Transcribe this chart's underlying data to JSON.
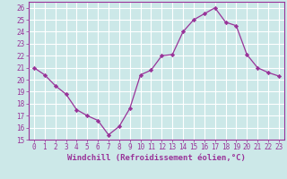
{
  "x": [
    0,
    1,
    2,
    3,
    4,
    5,
    6,
    7,
    8,
    9,
    10,
    11,
    12,
    13,
    14,
    15,
    16,
    17,
    18,
    19,
    20,
    21,
    22,
    23
  ],
  "y": [
    21.0,
    20.4,
    19.5,
    18.8,
    17.5,
    17.0,
    16.6,
    15.4,
    16.1,
    17.6,
    20.4,
    20.8,
    22.0,
    22.1,
    24.0,
    25.0,
    25.5,
    26.0,
    24.8,
    24.5,
    22.1,
    21.0,
    20.6,
    20.3
  ],
  "line_color": "#993399",
  "marker": "D",
  "marker_size": 2.2,
  "bg_color": "#cce8e8",
  "grid_color": "#ffffff",
  "tick_color": "#993399",
  "label_color": "#993399",
  "xlabel": "Windchill (Refroidissement éolien,°C)",
  "ylabel": "",
  "xlim": [
    -0.5,
    23.5
  ],
  "ylim": [
    15,
    26.5
  ],
  "yticks": [
    15,
    16,
    17,
    18,
    19,
    20,
    21,
    22,
    23,
    24,
    25,
    26
  ],
  "xticks": [
    0,
    1,
    2,
    3,
    4,
    5,
    6,
    7,
    8,
    9,
    10,
    11,
    12,
    13,
    14,
    15,
    16,
    17,
    18,
    19,
    20,
    21,
    22,
    23
  ],
  "xtick_labels": [
    "0",
    "1",
    "2",
    "3",
    "4",
    "5",
    "6",
    "7",
    "8",
    "9",
    "10",
    "11",
    "12",
    "13",
    "14",
    "15",
    "16",
    "17",
    "18",
    "19",
    "20",
    "21",
    "22",
    "23"
  ],
  "font_size": 5.5,
  "label_font_size": 6.5
}
